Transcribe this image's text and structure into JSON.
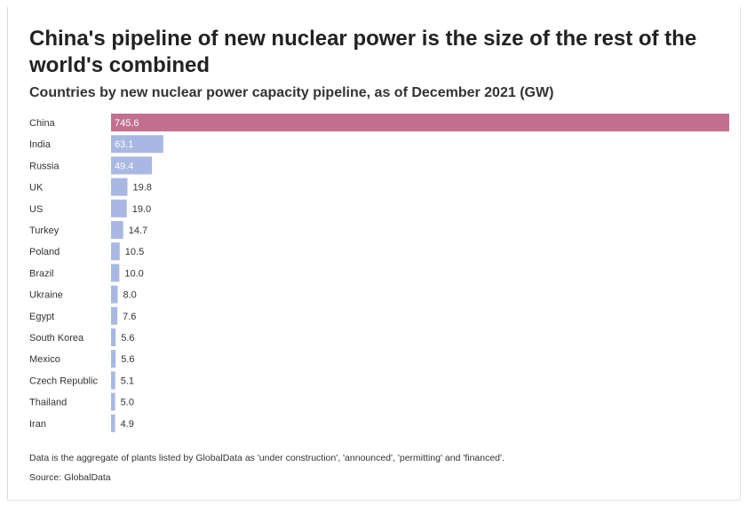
{
  "title": "China's pipeline of new nuclear power is the size of the rest of the world's combined",
  "subtitle": "Countries by new nuclear power capacity pipeline, as of December 2021 (GW)",
  "note": "Data is the aggregate of plants listed by GlobalData as 'under construction', 'announced', 'permitting' and 'financed'.",
  "source": "Source: GlobalData",
  "colors": {
    "highlight": "#c3708f",
    "bar": "#a9b8e3",
    "label_inside": "#ffffff",
    "label_outside": "#333333"
  },
  "chart_data": {
    "type": "bar",
    "orientation": "horizontal",
    "categories": [
      "China",
      "India",
      "Russia",
      "UK",
      "US",
      "Turkey",
      "Poland",
      "Brazil",
      "Ukraine",
      "Egypt",
      "South Korea",
      "Mexico",
      "Czech Republic",
      "Thailand",
      "Iran"
    ],
    "values": [
      745.6,
      63.1,
      49.4,
      19.8,
      19.0,
      14.7,
      10.5,
      10.0,
      8.0,
      7.6,
      5.6,
      5.6,
      5.1,
      5.0,
      4.9
    ],
    "value_labels": [
      "745.6",
      "63.1",
      "49.4",
      "19.8",
      "19.0",
      "14.7",
      "10.5",
      "10.0",
      "8.0",
      "7.6",
      "5.6",
      "5.6",
      "5.1",
      "5.0",
      "4.9"
    ],
    "highlight_category": "China",
    "xlim": [
      0,
      745.6
    ],
    "grid": false,
    "legend": "none"
  }
}
